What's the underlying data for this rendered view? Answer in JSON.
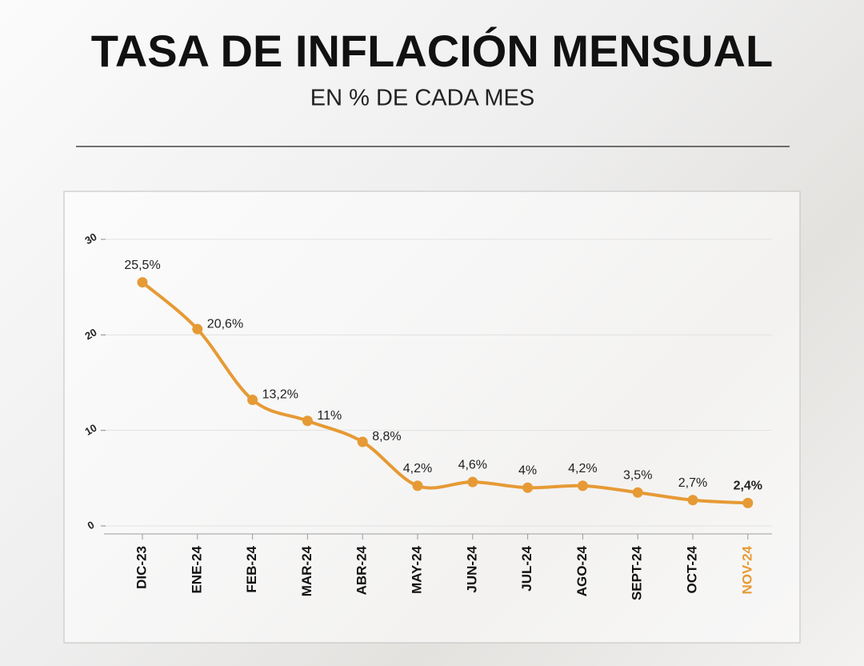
{
  "chart_data": {
    "type": "line",
    "title": "TASA DE INFLACIÓN MENSUAL",
    "subtitle": "EN % DE CADA MES",
    "categories": [
      "DIC-23",
      "ENE-24",
      "FEB-24",
      "MAR-24",
      "ABR-24",
      "MAY-24",
      "JUN-24",
      "JUL-24",
      "AGO-24",
      "SEPT-24",
      "OCT-24",
      "NOV-24"
    ],
    "series": [
      {
        "name": "Inflación mensual",
        "color": "#e69a35",
        "values": [
          25.5,
          20.6,
          13.2,
          11,
          8.8,
          4.2,
          4.6,
          4,
          4.2,
          3.5,
          2.7,
          2.4
        ],
        "value_labels": [
          "25,5%",
          "20,6%",
          "13,2%",
          "11%",
          "8,8%",
          "4,2%",
          "4,6%",
          "4%",
          "4,2%",
          "3,5%",
          "2,7%",
          "2,4%"
        ]
      }
    ],
    "ylim": [
      0,
      30
    ],
    "yticks": [
      0,
      10,
      20,
      30
    ],
    "grid": true
  }
}
